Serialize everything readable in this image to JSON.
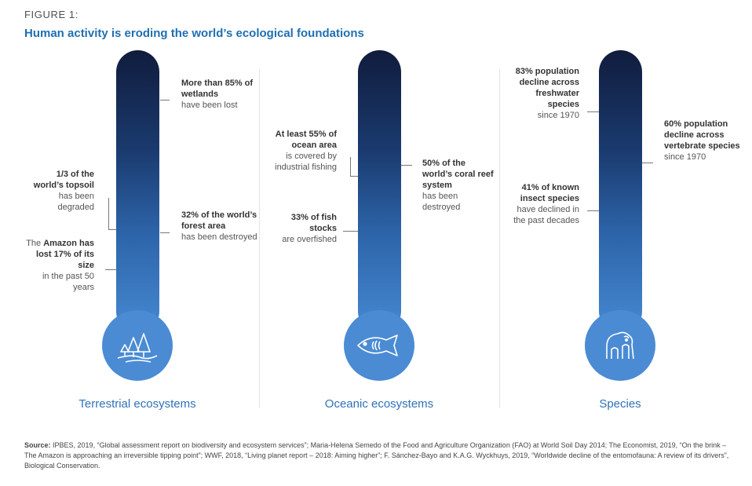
{
  "header": {
    "figure_label": "FIGURE 1:",
    "title": "Human activity is eroding the world’s ecological foundations"
  },
  "columns": [
    {
      "title": "Terrestrial ecosystems",
      "icon": "trees-icon",
      "annotations": [
        {
          "bold": "More than 85% of wetlands",
          "text": "have been lost"
        },
        {
          "bold": "1/3 of the world’s topsoil",
          "text": "has been degraded"
        },
        {
          "bold": "32% of the world’s forest area",
          "text": "has been destroyed"
        },
        {
          "pre": "The ",
          "bold": "Amazon has lost 17% of its size",
          "text": "in the past 50 years"
        }
      ]
    },
    {
      "title": "Oceanic ecosystems",
      "icon": "fish-icon",
      "annotations": [
        {
          "bold": "At least 55% of ocean area",
          "text": "is covered by industrial fishing"
        },
        {
          "bold": "50% of the world’s coral reef system",
          "text": "has been destroyed"
        },
        {
          "bold": "33% of fish stocks",
          "text": "are overfished"
        }
      ]
    },
    {
      "title": "Species",
      "icon": "gorilla-icon",
      "annotations": [
        {
          "bold": "83% population decline across freshwater species",
          "text": "since 1970"
        },
        {
          "bold": "60% population decline across vertebrate species",
          "text": "since 1970"
        },
        {
          "bold": "41% of known insect species",
          "text": "have declined in the past decades"
        }
      ]
    }
  ],
  "source": {
    "label": "Source:",
    "text": "IPBES, 2019, “Global assessment report on biodiversity and ecosystem services”; Maria-Helena Semedo of the Food and Agriculture Organization (FAO) at World Soil Day 2014; The Economist, 2019, “On the brink – The Amazon is approaching an irreversible tipping point”; WWF, 2018, “Living planet report – 2018: Aiming higher”; F. Sánchez-Bayo and K.A.G. Wyckhuys, 2019, “Worldwide decline of the entomofauna: A review of its drivers”, Biological Conservation."
  },
  "colors": {
    "accent": "#1f6fb2",
    "thermometer_top": "#101c3d",
    "thermometer_bottom": "#4689d1",
    "bulb": "#4a8bd4"
  }
}
